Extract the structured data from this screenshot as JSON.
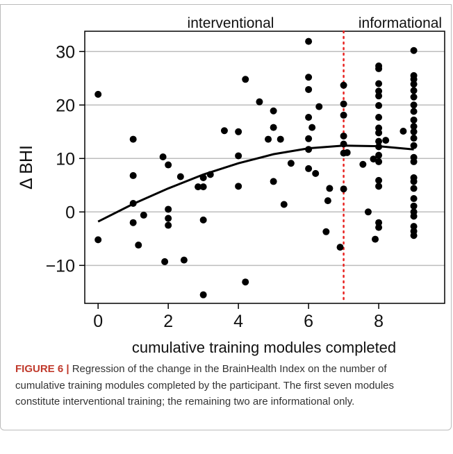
{
  "chart_data": {
    "type": "scatter",
    "x_label": "cumulative training modules completed",
    "y_label": "Δ BHI",
    "annotations": [
      "interventional",
      "informational"
    ],
    "xlim": [
      -0.38,
      9.88
    ],
    "ylim": [
      -17.1,
      33.8
    ],
    "xticks": [
      0,
      2,
      4,
      6,
      8
    ],
    "yticks": [
      {
        "value": -10,
        "label": "−10"
      },
      0,
      10,
      20,
      30
    ],
    "grid": true,
    "vline": {
      "x": 7,
      "color": "#e8211f"
    },
    "points": {
      "color": "#000000",
      "x": [
        0,
        0,
        1,
        1,
        1,
        1,
        1.15,
        1.3,
        1.85,
        1.9,
        2,
        2,
        2,
        2,
        2.45,
        2.35,
        2.85,
        3,
        3,
        3,
        3,
        3.2,
        3.6,
        4,
        4,
        4,
        4.2,
        4.2,
        4.6,
        4.85,
        5,
        5,
        5,
        5.2,
        5.3,
        5.5,
        6,
        6,
        6,
        6,
        6,
        6,
        6,
        6.1,
        6.2,
        6.3,
        6.5,
        6.55,
        6.6,
        6.9,
        7,
        7,
        7,
        7,
        7,
        7,
        7,
        7.1,
        7.55,
        7.7,
        7.85,
        7.9,
        8,
        8,
        8,
        8,
        8,
        8,
        8,
        8,
        8,
        8,
        8,
        8,
        8,
        8,
        8,
        8,
        8,
        8.2,
        8.7,
        9,
        9,
        9,
        9,
        9,
        9,
        9,
        9,
        9,
        9,
        9,
        9,
        9,
        9,
        9,
        9,
        9,
        9,
        9,
        9,
        9,
        9,
        9,
        9,
        9
      ],
      "y": [
        22,
        -5.2,
        13.6,
        6.8,
        1.6,
        -2,
        -6.2,
        -0.6,
        10.3,
        -9.3,
        8.8,
        0.5,
        -1.2,
        -2.5,
        -9,
        6.6,
        4.7,
        6.4,
        4.7,
        -1.5,
        -15.5,
        7,
        15.2,
        15,
        10.5,
        4.8,
        24.8,
        -13.1,
        20.6,
        13.6,
        18.9,
        15.8,
        5.7,
        13.6,
        1.4,
        9.1,
        31.9,
        25.2,
        22.9,
        17.7,
        13.7,
        11.7,
        8.1,
        15.8,
        7.2,
        19.7,
        -3.7,
        2.1,
        4.4,
        -6.6,
        23.7,
        20.2,
        18.1,
        14.2,
        12.7,
        11,
        4.3,
        11.1,
        8.9,
        0,
        9.9,
        -5.1,
        27.3,
        26.8,
        24,
        22.6,
        21.7,
        19.9,
        17.7,
        15.7,
        14.8,
        13.2,
        12.2,
        10.6,
        9.4,
        5.9,
        4.8,
        -2,
        -2.9,
        13.4,
        15.1,
        30.2,
        25.5,
        24.8,
        23.9,
        22.7,
        21.5,
        20,
        18.8,
        17.2,
        16,
        15,
        13.8,
        12.4,
        10.2,
        9.4,
        6.4,
        5.7,
        4.4,
        2.5,
        1.1,
        0,
        -0.8,
        -2.7,
        -3.6,
        -4.4
      ]
    },
    "fit": {
      "color": "#000000",
      "x": [
        0,
        1,
        2,
        3,
        4,
        5,
        6,
        7,
        8,
        9
      ],
      "y": [
        -1.8,
        1.5,
        4.4,
        7.0,
        9.1,
        10.8,
        11.9,
        12.4,
        12.3,
        11.7
      ]
    }
  },
  "caption": {
    "label": "FIGURE 6 |",
    "text": "Regression of the change in the BrainHealth Index on the number of cumulative training modules completed by the participant. The first seven modules constitute interventional training; the remaining two are informational only."
  }
}
